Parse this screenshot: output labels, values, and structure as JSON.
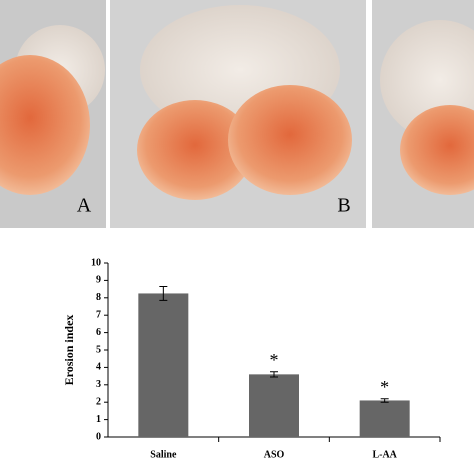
{
  "photos": {
    "labels": [
      "A",
      "B"
    ]
  },
  "chart_data": {
    "type": "bar",
    "ylabel": "Erosion index",
    "categories": [
      "Saline",
      "ASO",
      "L-AA"
    ],
    "values": [
      8.25,
      3.6,
      2.1
    ],
    "errors": [
      0.4,
      0.15,
      0.1
    ],
    "annotations": [
      {
        "category": "ASO",
        "text": "*"
      },
      {
        "category": "L-AA",
        "text": "*"
      }
    ],
    "color": "#666666",
    "ylim": [
      0,
      10
    ],
    "yticks": [
      0,
      1,
      2,
      3,
      4,
      5,
      6,
      7,
      8,
      9,
      10
    ]
  }
}
